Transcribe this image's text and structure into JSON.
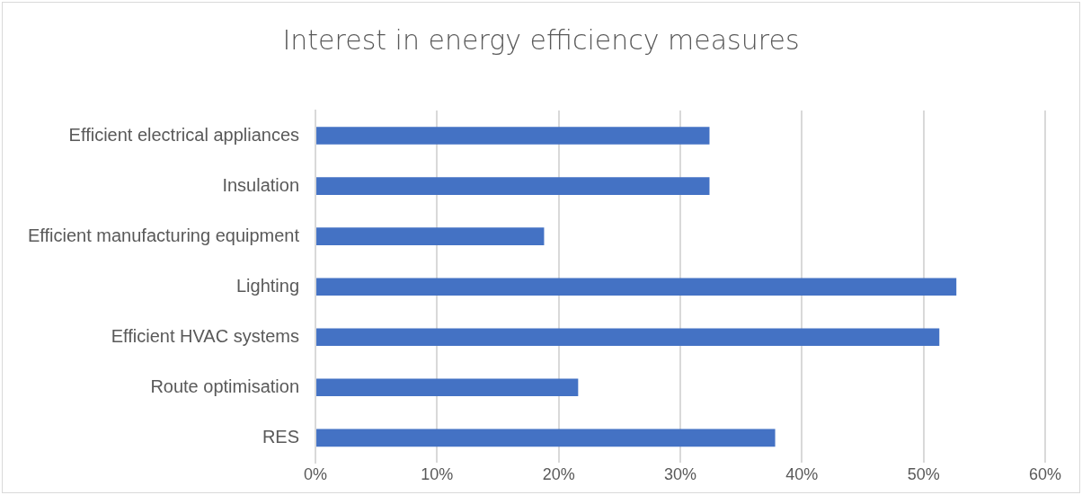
{
  "chart_data": {
    "type": "bar",
    "orientation": "horizontal",
    "title": "Interest in energy efficiency measures",
    "categories": [
      "Efficient electrical appliances",
      "Insulation",
      "Efficient manufacturing equipment",
      "Lighting",
      "Efficient HVAC systems",
      "Route optimisation",
      "RES"
    ],
    "values": [
      32.4,
      32.4,
      18.8,
      52.7,
      51.3,
      21.6,
      37.8
    ],
    "color": "#4472c4",
    "xlim": [
      0,
      60
    ],
    "xticks": [
      {
        "value": 0,
        "label": "0%"
      },
      {
        "value": 10,
        "label": "10%"
      },
      {
        "value": 20,
        "label": "20%"
      },
      {
        "value": 30,
        "label": "30%"
      },
      {
        "value": 40,
        "label": "40%"
      },
      {
        "value": 50,
        "label": "50%"
      },
      {
        "value": 60,
        "label": "60%"
      }
    ],
    "grid": "x",
    "legend": false
  }
}
